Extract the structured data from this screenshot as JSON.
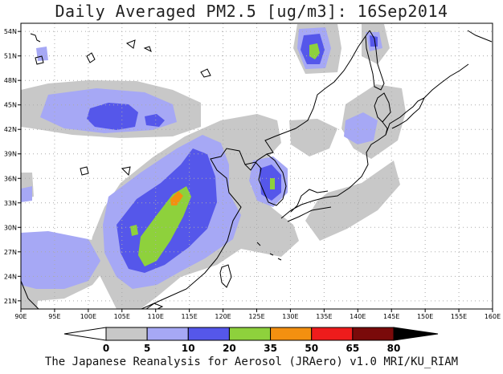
{
  "title": "Daily Averaged PM2.5 [ug/m3]: 16Sep2014",
  "footer": "The Japanese Reanalysis for Aerosol (JRAero) v1.0 MRI/KU_RIAM",
  "map": {
    "lon_range": [
      90,
      160
    ],
    "lat_range": [
      20,
      55
    ],
    "lat_ticks": [
      "54N",
      "51N",
      "48N",
      "45N",
      "42N",
      "39N",
      "36N",
      "33N",
      "30N",
      "27N",
      "24N",
      "21N"
    ],
    "lon_ticks": [
      "90E",
      "95E",
      "100E",
      "105E",
      "110E",
      "115E",
      "120E",
      "125E",
      "130E",
      "135E",
      "140E",
      "145E",
      "150E",
      "155E",
      "160E"
    ]
  },
  "colorbar": {
    "levels": [
      "0",
      "5",
      "10",
      "20",
      "35",
      "50",
      "65",
      "80"
    ],
    "colors": [
      "#ffffff",
      "#c8c8c8",
      "#a6a8f5",
      "#5557ea",
      "#8ed13c",
      "#f39010",
      "#ee1c1c",
      "#7a0a0a"
    ]
  }
}
